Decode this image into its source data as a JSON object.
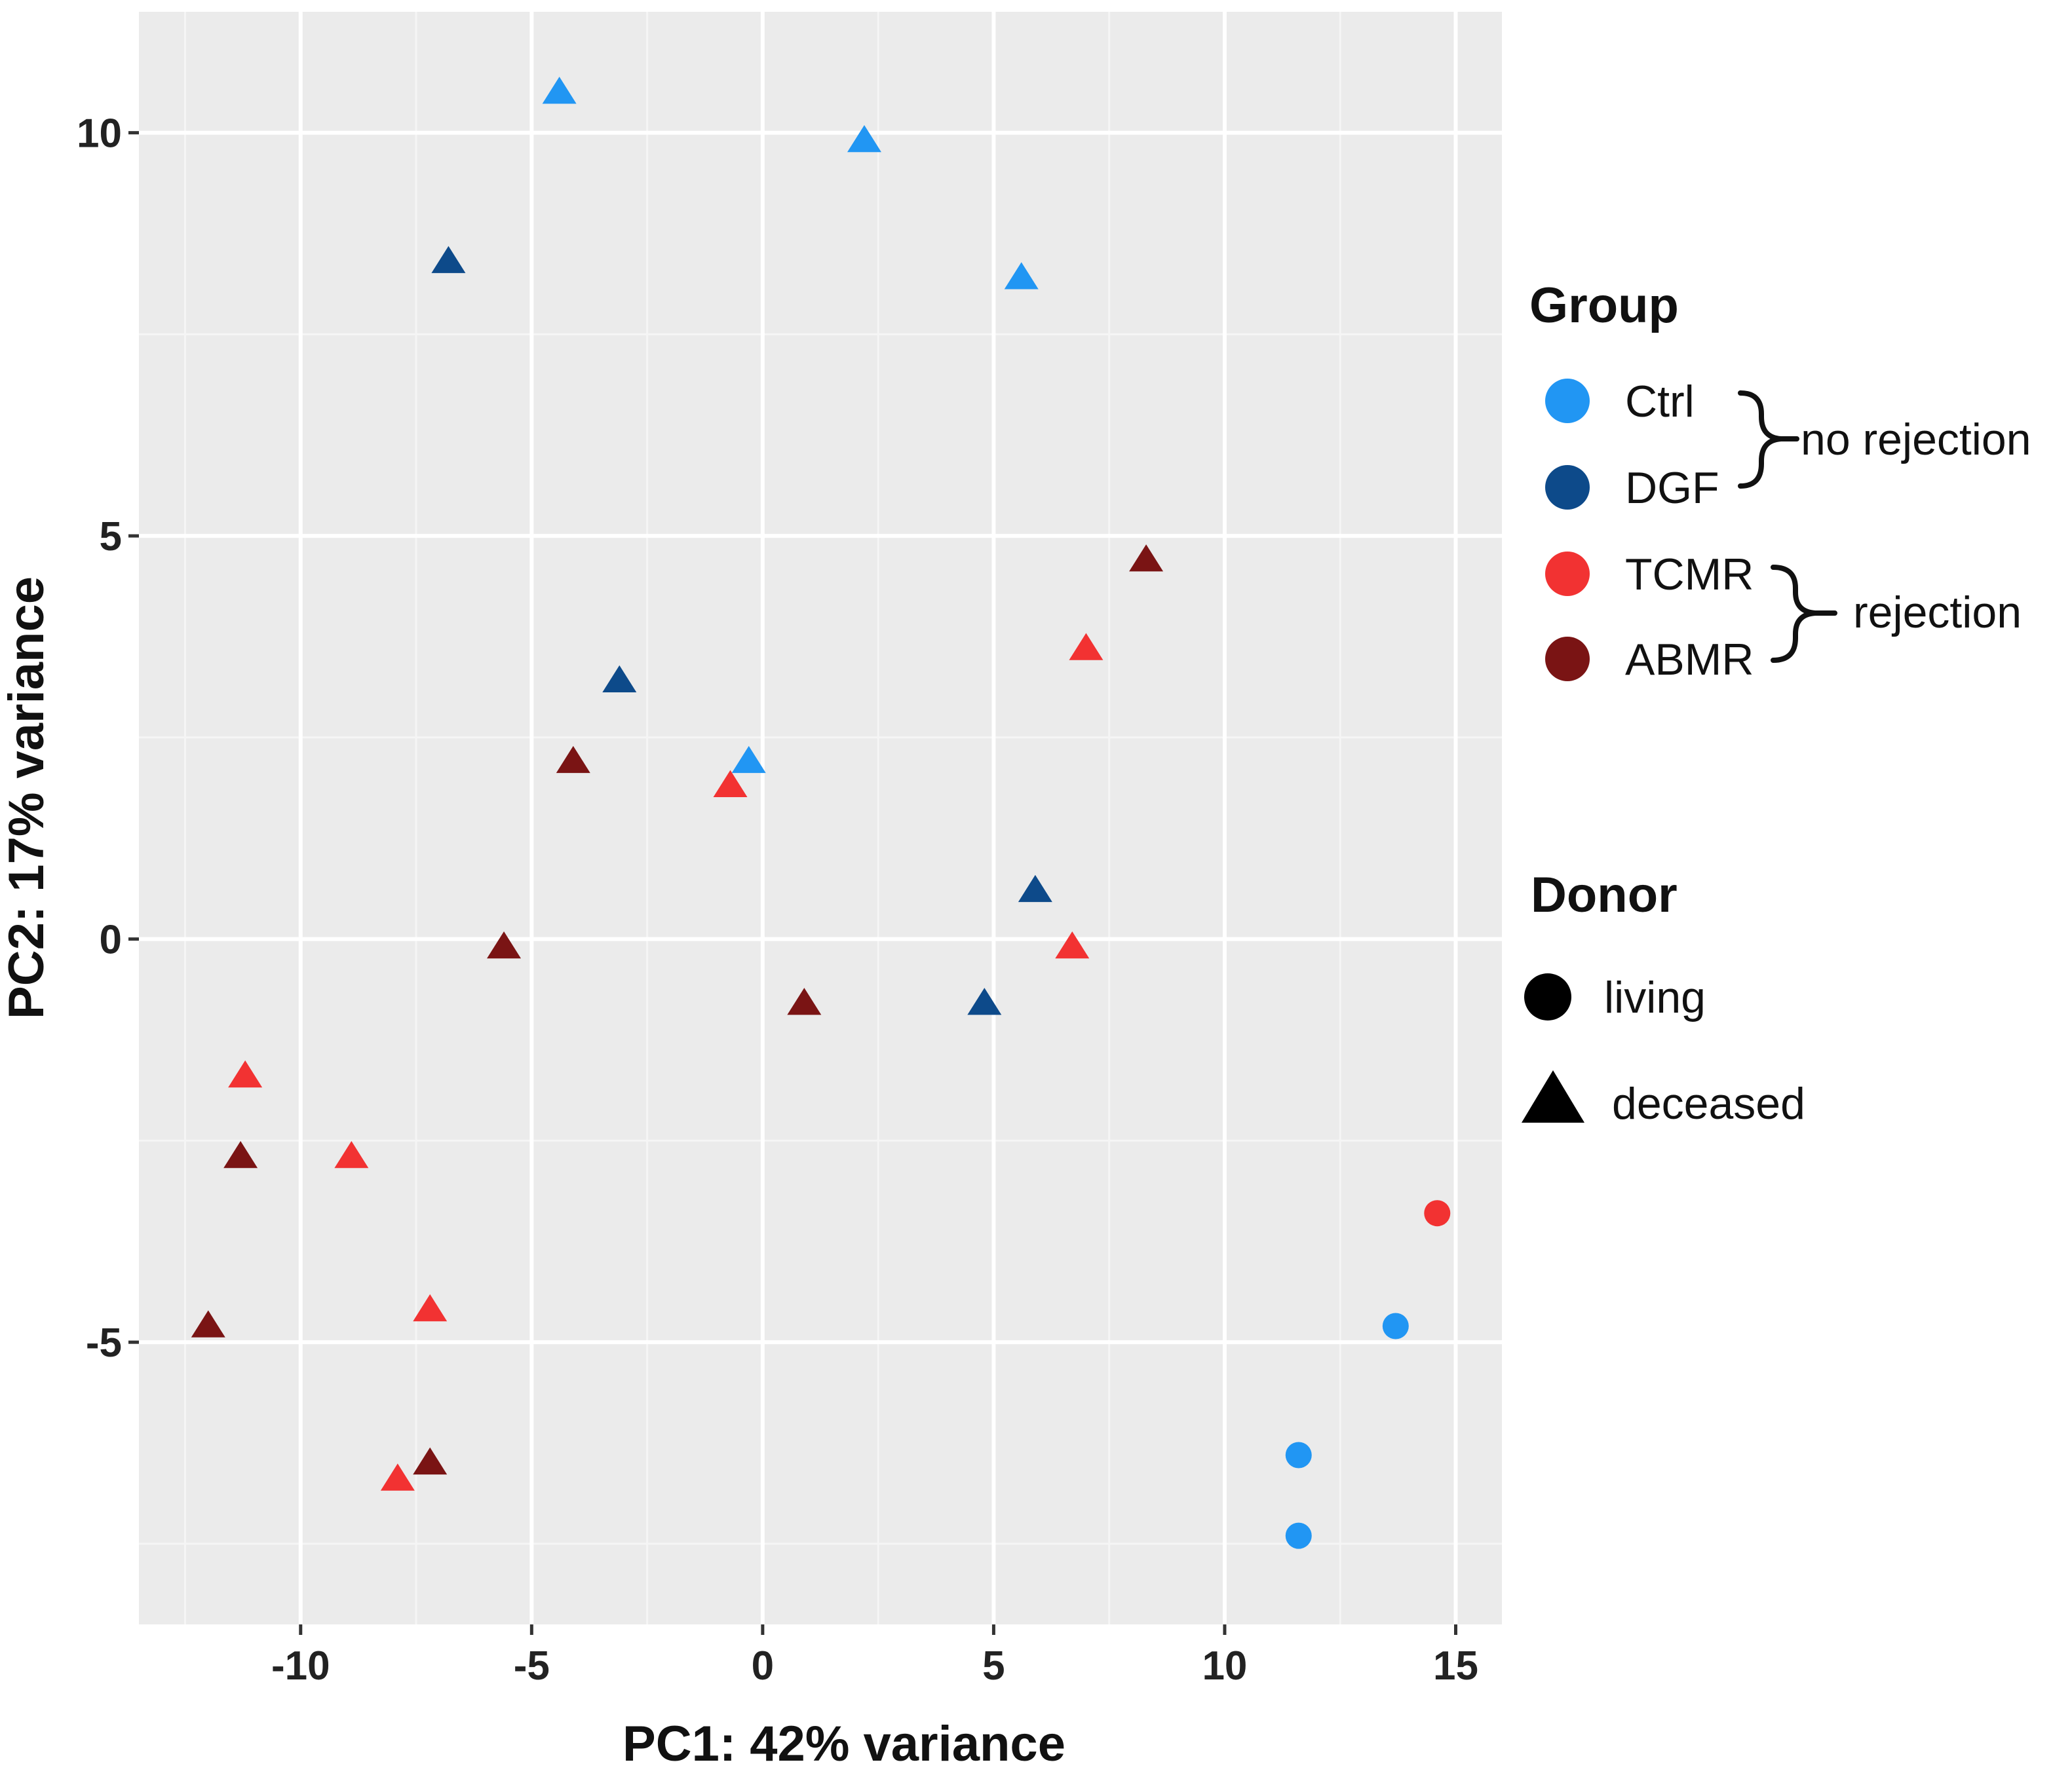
{
  "chart_data": {
    "type": "scatter",
    "title": "",
    "xlabel": "PC1: 42% variance",
    "ylabel": "PC2: 17% variance",
    "xlim": [
      -13.5,
      16
    ],
    "ylim": [
      -8.5,
      11.5
    ],
    "xticks": [
      -10,
      -5,
      0,
      5,
      10,
      15
    ],
    "yticks": [
      -5,
      0,
      5,
      10
    ],
    "xtick_labels": [
      "-10",
      "-5",
      "0",
      "5",
      "10",
      "15"
    ],
    "ytick_labels": [
      "-5",
      "0",
      "5",
      "10"
    ],
    "grid": true,
    "colors": {
      "Ctrl": "#2196f3",
      "DGF": "#0d4a8a",
      "TCMR": "#f23232",
      "ABMR": "#7a1414"
    },
    "points": [
      {
        "x": -4.4,
        "y": 10.5,
        "group": "Ctrl",
        "donor": "deceased"
      },
      {
        "x": 2.2,
        "y": 9.9,
        "group": "Ctrl",
        "donor": "deceased"
      },
      {
        "x": 5.6,
        "y": 8.2,
        "group": "Ctrl",
        "donor": "deceased"
      },
      {
        "x": -0.3,
        "y": 2.2,
        "group": "Ctrl",
        "donor": "deceased"
      },
      {
        "x": 13.7,
        "y": -4.8,
        "group": "Ctrl",
        "donor": "living"
      },
      {
        "x": 11.6,
        "y": -6.4,
        "group": "Ctrl",
        "donor": "living"
      },
      {
        "x": 11.6,
        "y": -7.4,
        "group": "Ctrl",
        "donor": "living"
      },
      {
        "x": -6.8,
        "y": 8.4,
        "group": "DGF",
        "donor": "deceased"
      },
      {
        "x": -3.1,
        "y": 3.2,
        "group": "DGF",
        "donor": "deceased"
      },
      {
        "x": 5.9,
        "y": 0.6,
        "group": "DGF",
        "donor": "deceased"
      },
      {
        "x": 4.8,
        "y": -0.8,
        "group": "DGF",
        "donor": "deceased"
      },
      {
        "x": 7.0,
        "y": 3.6,
        "group": "TCMR",
        "donor": "deceased"
      },
      {
        "x": -0.7,
        "y": 1.9,
        "group": "TCMR",
        "donor": "deceased"
      },
      {
        "x": 6.7,
        "y": -0.1,
        "group": "TCMR",
        "donor": "deceased"
      },
      {
        "x": -11.2,
        "y": -1.7,
        "group": "TCMR",
        "donor": "deceased"
      },
      {
        "x": -8.9,
        "y": -2.7,
        "group": "TCMR",
        "donor": "deceased"
      },
      {
        "x": -7.2,
        "y": -4.6,
        "group": "TCMR",
        "donor": "deceased"
      },
      {
        "x": -7.9,
        "y": -6.7,
        "group": "TCMR",
        "donor": "deceased"
      },
      {
        "x": 14.6,
        "y": -3.4,
        "group": "TCMR",
        "donor": "living"
      },
      {
        "x": 8.3,
        "y": 4.7,
        "group": "ABMR",
        "donor": "deceased"
      },
      {
        "x": -4.1,
        "y": 2.2,
        "group": "ABMR",
        "donor": "deceased"
      },
      {
        "x": -5.6,
        "y": -0.1,
        "group": "ABMR",
        "donor": "deceased"
      },
      {
        "x": 0.9,
        "y": -0.8,
        "group": "ABMR",
        "donor": "deceased"
      },
      {
        "x": -11.3,
        "y": -2.7,
        "group": "ABMR",
        "donor": "deceased"
      },
      {
        "x": -12.0,
        "y": -4.8,
        "group": "ABMR",
        "donor": "deceased"
      },
      {
        "x": -7.2,
        "y": -6.5,
        "group": "ABMR",
        "donor": "deceased"
      }
    ],
    "legend": {
      "position": "right",
      "group_title": "Group",
      "group_entries": [
        {
          "label": "Ctrl",
          "color": "#2196f3"
        },
        {
          "label": "DGF",
          "color": "#0d4a8a"
        },
        {
          "label": "TCMR",
          "color": "#f23232"
        },
        {
          "label": "ABMR",
          "color": "#7a1414"
        }
      ],
      "no_rejection_label": "no rejection",
      "rejection_label": "rejection",
      "donor_title": "Donor",
      "donor_entries": [
        {
          "label": "living",
          "shape": "circle"
        },
        {
          "label": "deceased",
          "shape": "triangle"
        }
      ]
    }
  }
}
